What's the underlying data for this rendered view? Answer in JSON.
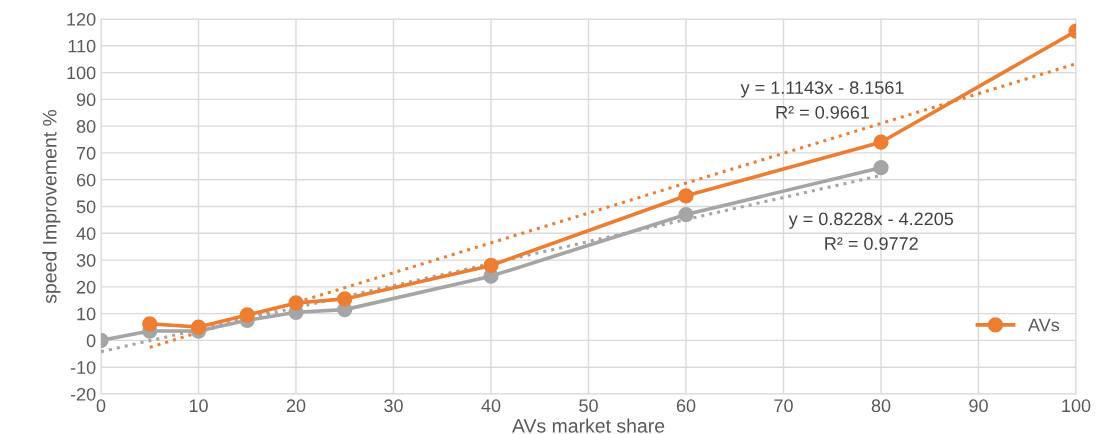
{
  "chart_data": {
    "type": "line",
    "xlabel": "AVs market share",
    "ylabel": "speed Improvement %",
    "xlim": [
      0,
      100
    ],
    "ylim": [
      -20,
      120
    ],
    "xticks": [
      0,
      10,
      20,
      30,
      40,
      50,
      60,
      70,
      80,
      90,
      100
    ],
    "yticks": [
      -20,
      -10,
      0,
      10,
      20,
      30,
      40,
      50,
      60,
      70,
      80,
      90,
      100,
      110,
      120
    ],
    "grid": true,
    "legend": "right",
    "series": [
      {
        "line_style": "dotted",
        "marker": "none",
        "color": "#ed7d31",
        "x": [
          5,
          100
        ],
        "values": [
          -2.6,
          103.3
        ]
      },
      {
        "line_style": "dotted",
        "marker": "none",
        "color": "#a5a5a5",
        "x": [
          0,
          80
        ],
        "values": [
          -4.2,
          61.6
        ]
      },
      {
        "line_style": "solid",
        "marker": "circle",
        "color": "#a5a5a5",
        "x": [
          0,
          5,
          10,
          15,
          20,
          25,
          40,
          60,
          80
        ],
        "values": [
          0,
          3.5,
          3.5,
          7.5,
          10.5,
          11.5,
          24,
          47,
          64.5
        ]
      },
      {
        "name": "AVs",
        "line_style": "solid",
        "marker": "circle",
        "color": "#ed7d31",
        "x": [
          5,
          10,
          15,
          20,
          25,
          40,
          60,
          80,
          100
        ],
        "values": [
          6.2,
          5,
          9.5,
          14,
          15.5,
          28,
          54,
          74,
          115.5
        ]
      }
    ],
    "annotations": [
      "y = 1.1143x - 8.1561\nR² = 0.9661",
      "y = 0.8228x - 4.2205\nR² = 0.9772"
    ]
  }
}
